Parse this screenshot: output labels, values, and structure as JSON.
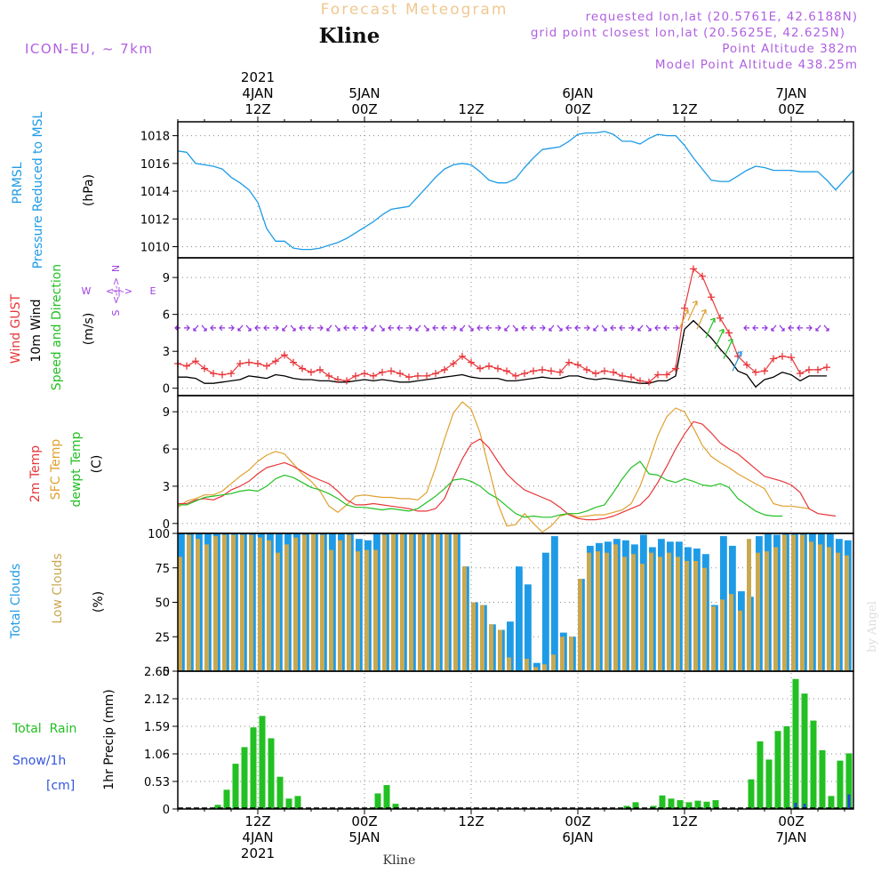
{
  "header": {
    "title": "Forecast Meteogram",
    "location": "Kline",
    "model": "ICON-EU,  ~ 7km",
    "requested": "requested lon,lat (20.5761E, 42.6188N)",
    "gridpoint": "grid point closest lon,lat (20.5625E, 42.625N)",
    "point_alt": "Point Altitude 382m",
    "model_alt": "Model Point Altitude 438.25m",
    "footer_location": "Kline",
    "watermark": "by Angel"
  },
  "colors": {
    "pressure": "#1e9be6",
    "gust": "#e8363a",
    "wind": "#000000",
    "purple": "#a040e0",
    "temp": "#e8363a",
    "sfc": "#e0a030",
    "dew": "#22c022",
    "total_cloud": "#1e9be6",
    "low_cloud": "#c8a850",
    "rain": "#22c022",
    "snow": "#2244dd"
  },
  "time_axis": {
    "top_labels": [
      {
        "t": 9,
        "lines": [
          "2021",
          "4JAN",
          "12Z"
        ]
      },
      {
        "t": 21,
        "lines": [
          "5JAN",
          "00Z"
        ]
      },
      {
        "t": 33,
        "lines": [
          "12Z"
        ]
      },
      {
        "t": 45,
        "lines": [
          "6JAN",
          "00Z"
        ]
      },
      {
        "t": 57,
        "lines": [
          "12Z"
        ]
      },
      {
        "t": 69,
        "lines": [
          "7JAN",
          "00Z"
        ]
      }
    ],
    "bottom_labels": [
      {
        "t": 9,
        "lines": [
          "12Z",
          "4JAN",
          "2021"
        ]
      },
      {
        "t": 21,
        "lines": [
          "00Z",
          "5JAN"
        ]
      },
      {
        "t": 33,
        "lines": [
          "12Z"
        ]
      },
      {
        "t": 45,
        "lines": [
          "00Z",
          "6JAN"
        ]
      },
      {
        "t": 57,
        "lines": [
          "12Z"
        ]
      },
      {
        "t": 69,
        "lines": [
          "00Z",
          "7JAN"
        ]
      }
    ]
  },
  "chart_data": [
    {
      "type": "line",
      "title": "PRMSL Pressure Reduced to MSL",
      "ylabel_lines": [
        "PRMSL",
        "Pressure Reduced to MSL"
      ],
      "unit": "(hPa)",
      "ylim": [
        1009.2,
        1019.0
      ],
      "yticks": [
        1010,
        1012,
        1014,
        1016,
        1018
      ],
      "series": [
        {
          "name": "PRMSL",
          "values": [
            1016.9,
            1016.8,
            1016.0,
            1015.9,
            1015.8,
            1015.6,
            1015.0,
            1014.6,
            1014.1,
            1013.2,
            1011.3,
            1010.4,
            1010.4,
            1009.9,
            1009.8,
            1009.8,
            1009.9,
            1010.1,
            1010.3,
            1010.6,
            1011.0,
            1011.4,
            1011.8,
            1012.3,
            1012.7,
            1012.8,
            1012.9,
            1013.6,
            1014.3,
            1015.0,
            1015.6,
            1015.9,
            1016.0,
            1015.9,
            1015.4,
            1014.8,
            1014.6,
            1014.6,
            1014.9,
            1015.7,
            1016.4,
            1017.0,
            1017.1,
            1017.2,
            1017.6,
            1018.1,
            1018.2,
            1018.2,
            1018.3,
            1018.1,
            1017.6,
            1017.6,
            1017.4,
            1017.8,
            1018.1,
            1018.0,
            1018.0,
            1017.3,
            1016.4,
            1015.6,
            1014.8,
            1014.7,
            1014.7,
            1015.1,
            1015.5,
            1015.8,
            1015.7,
            1015.5,
            1015.5,
            1015.5,
            1015.4,
            1015.4,
            1015.4,
            1014.8,
            1014.1,
            1014.8,
            1015.5
          ]
        }
      ]
    },
    {
      "type": "line",
      "title": "Wind GUST, 10m Wind Speed and Direction",
      "ylabel_lines": [
        "Wind GUST",
        "10m Wind",
        "Speed and Direction"
      ],
      "unit": "(m/s)",
      "compass": {
        "n": "N",
        "s": "S",
        "w": "W",
        "e": "E",
        "arrow": "<-|->"
      },
      "ylim": [
        -0.6,
        10.6
      ],
      "yticks": [
        0,
        3,
        6,
        9
      ],
      "series": [
        {
          "name": "Wind GUST",
          "values": [
            2.0,
            1.8,
            2.2,
            1.6,
            1.2,
            1.1,
            1.2,
            2.0,
            2.1,
            2.0,
            1.8,
            2.2,
            2.7,
            2.1,
            1.6,
            1.3,
            1.5,
            1.0,
            0.7,
            0.6,
            1.0,
            1.2,
            1.0,
            1.3,
            1.4,
            1.2,
            0.9,
            1.0,
            1.0,
            1.2,
            1.5,
            2.0,
            2.6,
            2.1,
            1.6,
            1.8,
            1.6,
            1.4,
            1.0,
            1.2,
            1.4,
            1.5,
            1.4,
            1.3,
            2.1,
            1.9,
            1.5,
            1.2,
            1.4,
            1.3,
            1.0,
            0.9,
            0.6,
            0.5,
            1.1,
            1.1,
            1.6,
            6.5,
            9.7,
            9.1,
            7.4,
            5.7,
            4.5,
            2.6,
            1.9,
            1.3,
            1.4,
            2.4,
            2.6,
            2.5,
            1.2,
            1.5,
            1.5,
            1.7
          ]
        },
        {
          "name": "10m Wind",
          "values": [
            0.9,
            0.9,
            0.8,
            0.4,
            0.4,
            0.5,
            0.6,
            0.7,
            1.0,
            0.9,
            0.8,
            1.1,
            1.0,
            0.8,
            0.7,
            0.7,
            0.6,
            0.6,
            0.5,
            0.5,
            0.6,
            0.7,
            0.6,
            0.7,
            0.6,
            0.5,
            0.5,
            0.6,
            0.7,
            0.8,
            0.9,
            1.0,
            1.1,
            0.9,
            0.8,
            0.8,
            0.8,
            0.6,
            0.6,
            0.7,
            0.8,
            0.9,
            0.8,
            0.8,
            1.0,
            1.0,
            0.8,
            0.7,
            0.8,
            0.7,
            0.6,
            0.5,
            0.4,
            0.4,
            0.6,
            0.6,
            1.0,
            4.8,
            5.5,
            4.8,
            4.1,
            3.2,
            2.4,
            1.4,
            1.1,
            0.1,
            0.7,
            0.9,
            1.3,
            1.1,
            0.6,
            1.0,
            1.0,
            1.0
          ]
        }
      ]
    },
    {
      "type": "line",
      "title": "2m Temp, SFC Temp, dewpt Temp",
      "ylabel_lines": [
        "2m Temp",
        "SFC Temp",
        "dewpt Temp"
      ],
      "unit": "(C)",
      "ylim": [
        -0.8,
        10.3
      ],
      "yticks": [
        0,
        3,
        6,
        9
      ],
      "series": [
        {
          "name": "2m Temp",
          "values": [
            1.6,
            1.6,
            1.9,
            2.0,
            1.9,
            2.2,
            2.7,
            3.0,
            3.4,
            4.0,
            4.5,
            4.7,
            4.9,
            4.6,
            4.2,
            3.8,
            3.5,
            3.2,
            2.6,
            1.9,
            1.5,
            1.5,
            1.6,
            1.5,
            1.4,
            1.3,
            1.2,
            1.0,
            1.0,
            1.2,
            2.0,
            3.7,
            5.2,
            6.4,
            6.8,
            6.1,
            5.0,
            4.0,
            3.3,
            2.7,
            2.4,
            2.1,
            1.8,
            1.3,
            0.7,
            0.4,
            0.3,
            0.3,
            0.4,
            0.6,
            0.9,
            1.2,
            1.5,
            2.2,
            3.3,
            4.6,
            6.0,
            7.2,
            8.2,
            8.0,
            7.3,
            6.5,
            6.0,
            5.6,
            5.0,
            4.4,
            3.8,
            3.6,
            3.4,
            3.1,
            2.5,
            1.2,
            0.8,
            0.7,
            0.6
          ]
        },
        {
          "name": "SFC Temp",
          "values": [
            1.3,
            1.8,
            2.0,
            2.3,
            2.3,
            2.6,
            3.2,
            3.8,
            4.3,
            5.0,
            5.5,
            5.8,
            5.6,
            4.8,
            4.0,
            3.4,
            2.6,
            1.4,
            0.9,
            1.5,
            2.2,
            2.3,
            2.2,
            2.1,
            2.1,
            2.0,
            2.0,
            1.9,
            2.5,
            4.5,
            6.8,
            8.9,
            9.8,
            9.2,
            7.3,
            4.4,
            1.6,
            -0.2,
            -0.1,
            0.8,
            0.0,
            -0.7,
            -0.2,
            0.6,
            0.8,
            0.5,
            0.6,
            0.7,
            0.7,
            0.9,
            1.1,
            1.6,
            3.0,
            5.0,
            7.1,
            8.6,
            9.3,
            9.0,
            7.7,
            6.3,
            5.4,
            4.9,
            4.5,
            4.0,
            3.6,
            3.2,
            2.8,
            1.6,
            1.4,
            1.4,
            1.3,
            1.2
          ]
        },
        {
          "name": "dewpt Temp",
          "values": [
            1.5,
            1.5,
            1.8,
            2.1,
            2.2,
            2.3,
            2.4,
            2.6,
            2.7,
            2.6,
            3.0,
            3.6,
            3.9,
            3.7,
            3.3,
            2.9,
            2.7,
            2.4,
            2.0,
            1.5,
            1.3,
            1.3,
            1.2,
            1.1,
            1.2,
            1.1,
            1.0,
            1.2,
            1.7,
            2.2,
            2.8,
            3.5,
            3.6,
            3.4,
            3.0,
            2.4,
            2.0,
            1.4,
            0.8,
            0.5,
            0.6,
            0.5,
            0.5,
            0.7,
            0.8,
            0.8,
            1.0,
            1.3,
            1.5,
            2.5,
            3.6,
            4.5,
            5.0,
            4.0,
            3.9,
            3.5,
            3.3,
            3.6,
            3.4,
            3.1,
            3.0,
            3.2,
            2.9,
            2.0,
            1.5,
            1.0,
            0.7,
            0.6,
            0.6
          ]
        }
      ]
    },
    {
      "type": "bar",
      "title": "Total Clouds, Low Clouds",
      "ylabel_lines": [
        "Total Clouds",
        "Low Clouds"
      ],
      "unit": "(%)",
      "ylim": [
        0,
        100
      ],
      "yticks": [
        0,
        25,
        50,
        75,
        100
      ],
      "series": [
        {
          "name": "Total Clouds",
          "values": [
            100,
            100,
            100,
            100,
            100,
            100,
            100,
            100,
            100,
            100,
            100,
            100,
            100,
            100,
            100,
            100,
            100,
            100,
            100,
            100,
            96,
            95,
            100,
            100,
            100,
            100,
            100,
            100,
            100,
            100,
            100,
            100,
            76,
            50,
            48,
            34,
            30,
            36,
            76,
            63,
            6,
            86,
            98,
            28,
            25,
            67,
            91,
            93,
            94,
            96,
            95,
            92,
            99,
            90,
            96,
            94,
            94,
            90,
            89,
            85,
            48,
            98,
            91,
            58,
            54,
            98,
            100,
            99,
            100,
            100,
            100,
            100,
            100,
            100,
            96,
            95,
            100,
            96
          ]
        },
        {
          "name": "Low Clouds",
          "values": [
            83,
            99,
            96,
            92,
            98,
            99,
            99,
            99,
            99,
            97,
            95,
            86,
            92,
            97,
            99,
            100,
            99,
            88,
            95,
            99,
            87,
            88,
            88,
            99,
            100,
            100,
            100,
            100,
            100,
            100,
            100,
            100,
            76,
            50,
            48,
            34,
            30,
            10,
            0,
            9,
            3,
            5,
            12,
            25,
            25,
            67,
            86,
            87,
            86,
            92,
            83,
            85,
            78,
            86,
            83,
            86,
            83,
            80,
            80,
            75,
            47,
            52,
            56,
            44,
            96,
            86,
            87,
            90,
            99,
            99,
            99,
            94,
            92,
            90,
            86,
            84,
            99,
            80
          ]
        }
      ]
    },
    {
      "type": "bar",
      "title": "1hr Precip",
      "ylabel_lines": [
        "1hr Precip (mm)"
      ],
      "legend_lines": [
        "Total  Rain",
        "Snow/1h",
        "[cm]"
      ],
      "ylim": [
        0,
        2.65
      ],
      "yticks": [
        0,
        0.53,
        1.06,
        1.59,
        2.12,
        2.65
      ],
      "ytick_labels": [
        "0",
        "0.53",
        "1.06",
        "1.59",
        "2.12",
        "2.65"
      ],
      "series": [
        {
          "name": "Total Rain",
          "values": [
            0,
            0,
            0,
            0,
            0.08,
            0.37,
            0.87,
            1.19,
            1.57,
            1.79,
            1.36,
            0.62,
            0.2,
            0.25,
            0,
            0,
            0,
            0,
            0,
            0.02,
            0,
            0.02,
            0.3,
            0.46,
            0.1,
            0,
            0,
            0,
            0,
            0,
            0,
            0,
            0,
            0,
            0,
            0,
            0,
            0,
            0,
            0,
            0,
            0,
            0,
            0,
            0,
            0,
            0,
            0,
            0,
            0,
            0.06,
            0.13,
            0,
            0.06,
            0.26,
            0.2,
            0.17,
            0.13,
            0.16,
            0.14,
            0.17,
            0,
            0,
            0,
            0.57,
            1.3,
            0.95,
            1.5,
            1.59,
            2.5,
            2.22,
            1.7,
            1.13,
            0.25,
            0.93,
            1.07
          ]
        },
        {
          "name": "Snow/1h",
          "values": [
            0,
            0,
            0,
            0,
            0,
            0,
            0,
            0,
            0,
            0,
            0,
            0,
            0,
            0,
            0,
            0,
            0,
            0,
            0,
            0,
            0,
            0,
            0,
            0,
            0,
            0,
            0,
            0,
            0,
            0,
            0,
            0,
            0,
            0,
            0,
            0,
            0,
            0,
            0,
            0,
            0,
            0,
            0,
            0,
            0,
            0,
            0,
            0,
            0,
            0,
            0,
            0,
            0,
            0,
            0,
            0,
            0,
            0,
            0,
            0,
            0,
            0,
            0,
            0,
            0,
            0,
            0,
            0,
            0,
            0.12,
            0.1,
            0,
            0,
            0,
            0,
            0.28
          ]
        }
      ]
    }
  ]
}
